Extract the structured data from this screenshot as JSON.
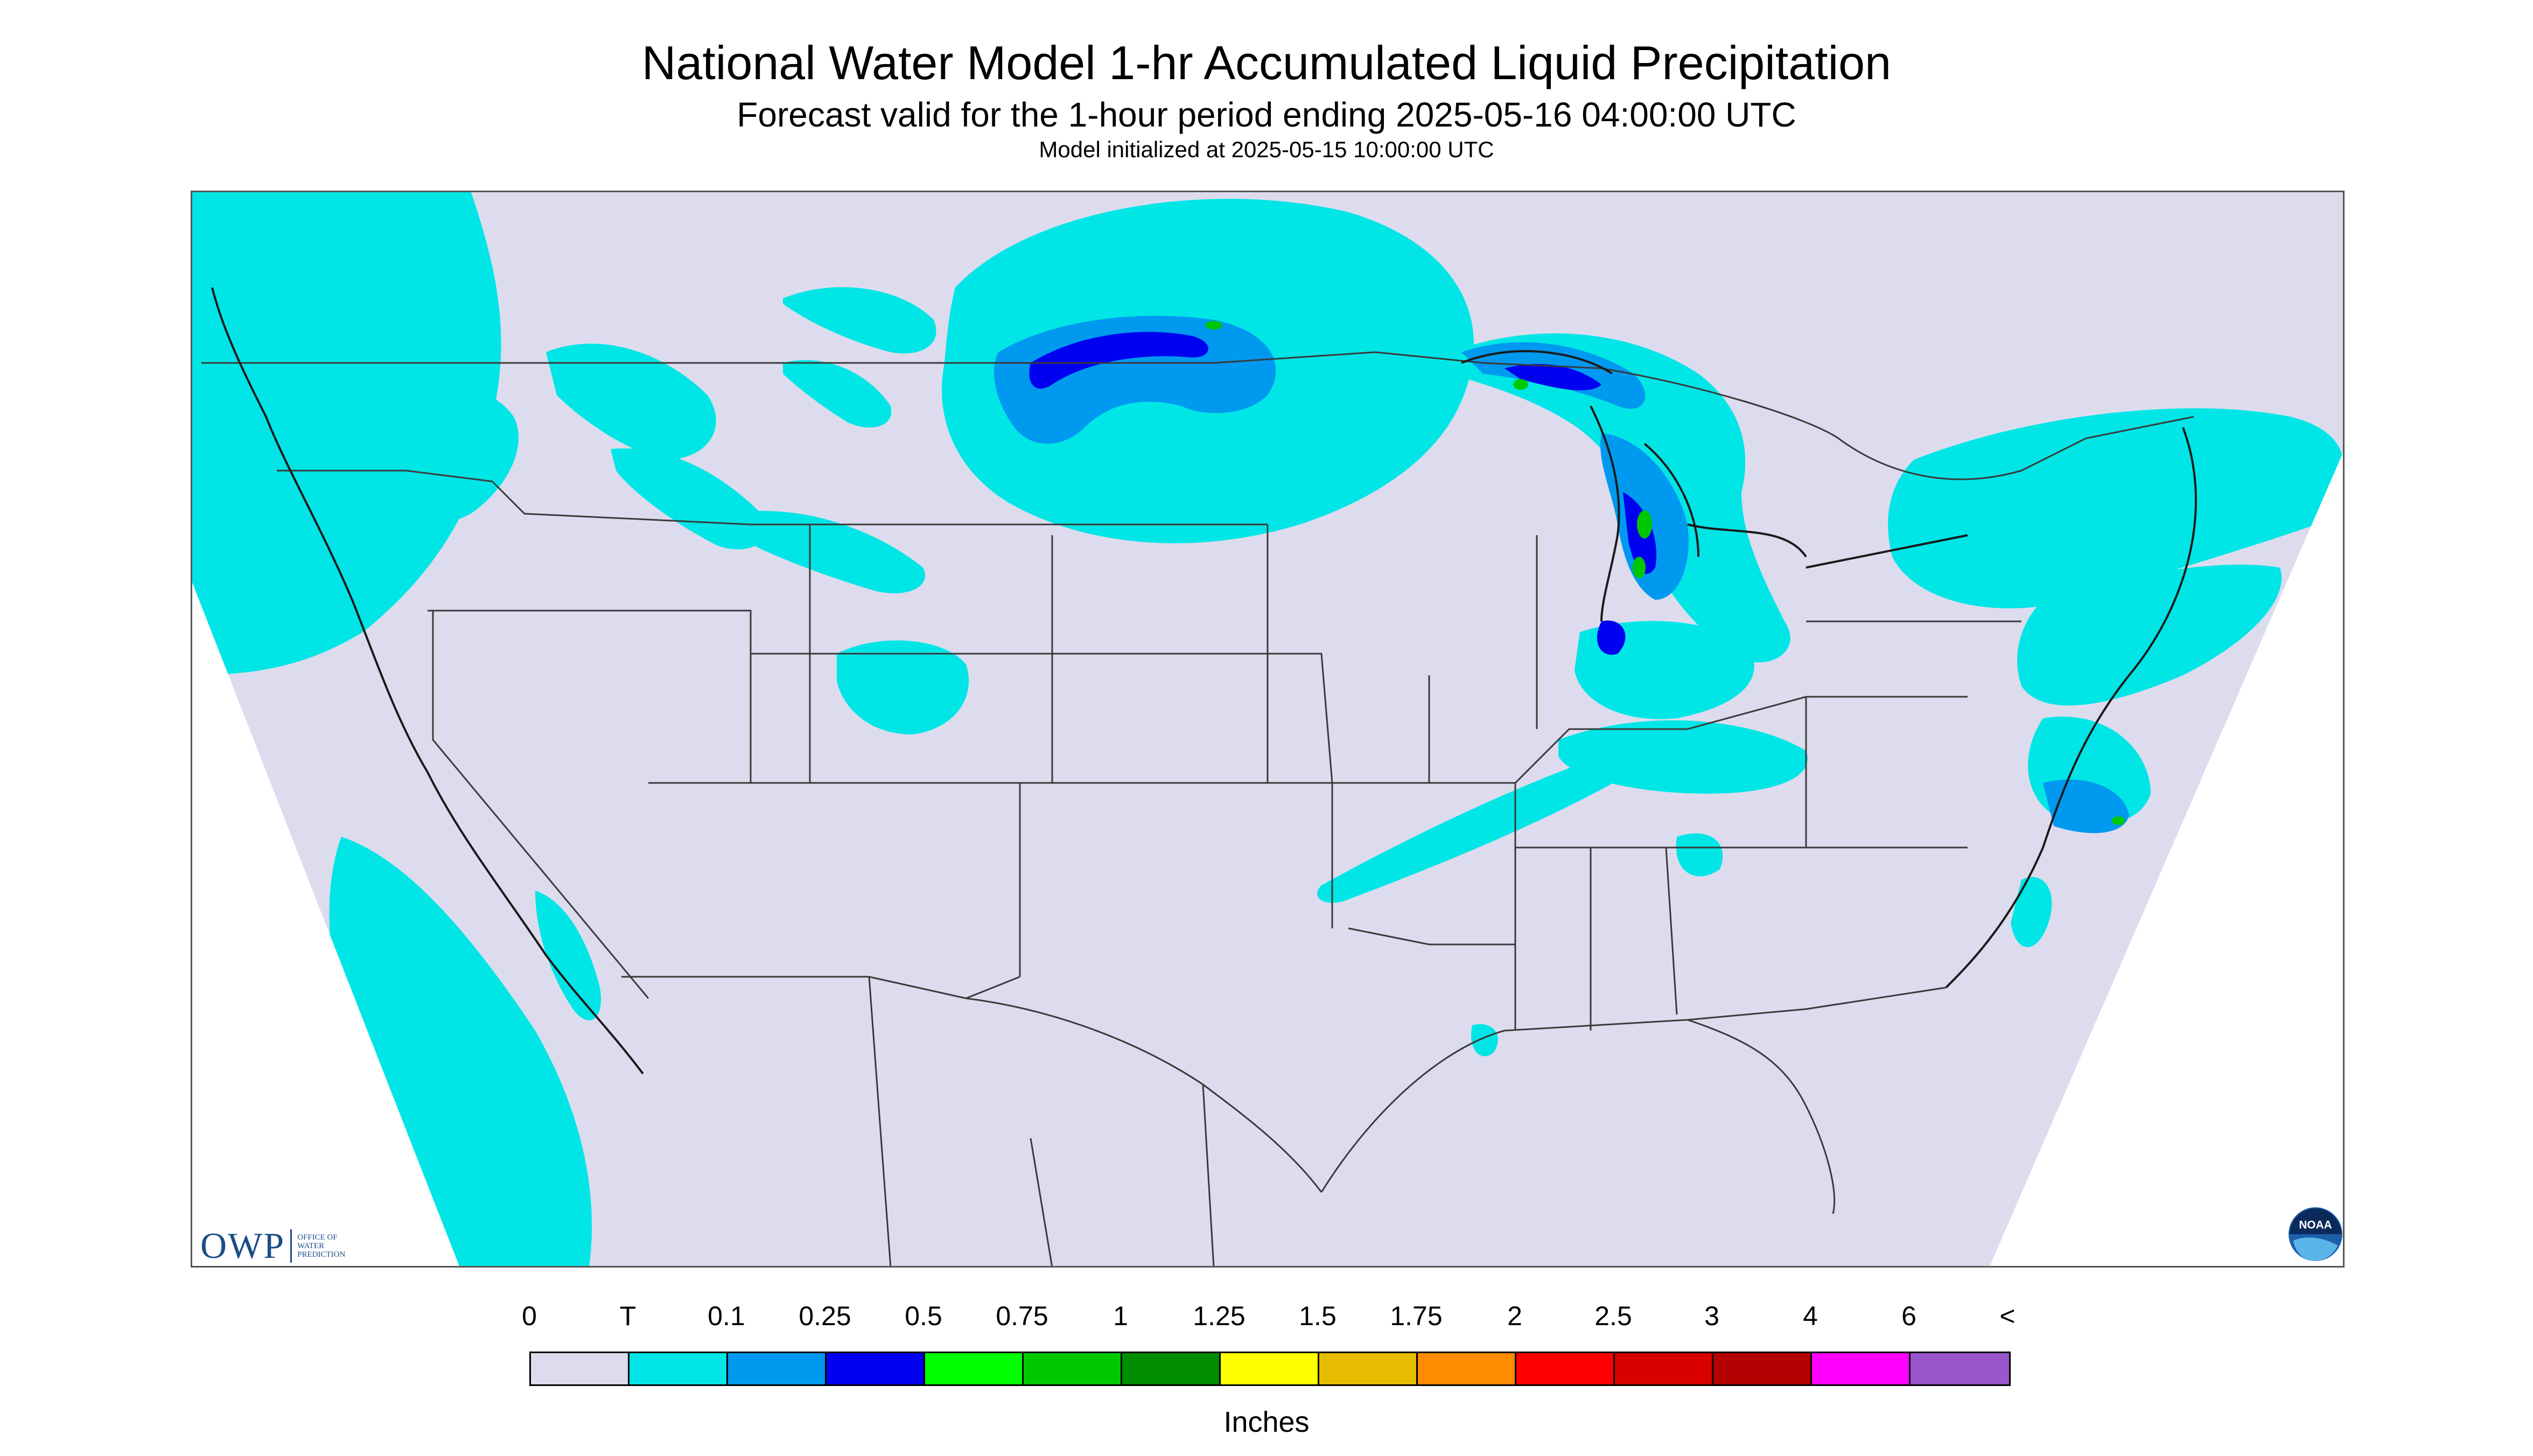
{
  "title": "National Water Model 1-hr Accumulated Liquid Precipitation",
  "subtitle": "Forecast valid for the 1-hour period ending 2025-05-16 04:00:00 UTC",
  "init_line": "Model initialized at 2025-05-15 10:00:00 UTC",
  "colors": {
    "background": "#dcdcee",
    "no_data": "#ffffff",
    "borders": "#3a3a3a"
  },
  "legend": {
    "unit": "Inches",
    "labels": [
      "0",
      "T",
      "0.1",
      "0.25",
      "0.5",
      "0.75",
      "1",
      "1.25",
      "1.5",
      "1.75",
      "2",
      "2.5",
      "3",
      "4",
      "6",
      "<"
    ],
    "colors": [
      "#dcdcee",
      "#00e6e6",
      "#0099f0",
      "#0000f0",
      "#00ff00",
      "#00c800",
      "#008c00",
      "#ffff00",
      "#e6bc00",
      "#ff8c00",
      "#ff0000",
      "#d90000",
      "#b30000",
      "#ff00ff",
      "#9955cc"
    ]
  },
  "logos": {
    "owp": {
      "mark": "OWP",
      "text": [
        "Office of",
        "Water",
        "Prediction"
      ]
    },
    "noaa": {
      "text": "NOAA"
    }
  }
}
